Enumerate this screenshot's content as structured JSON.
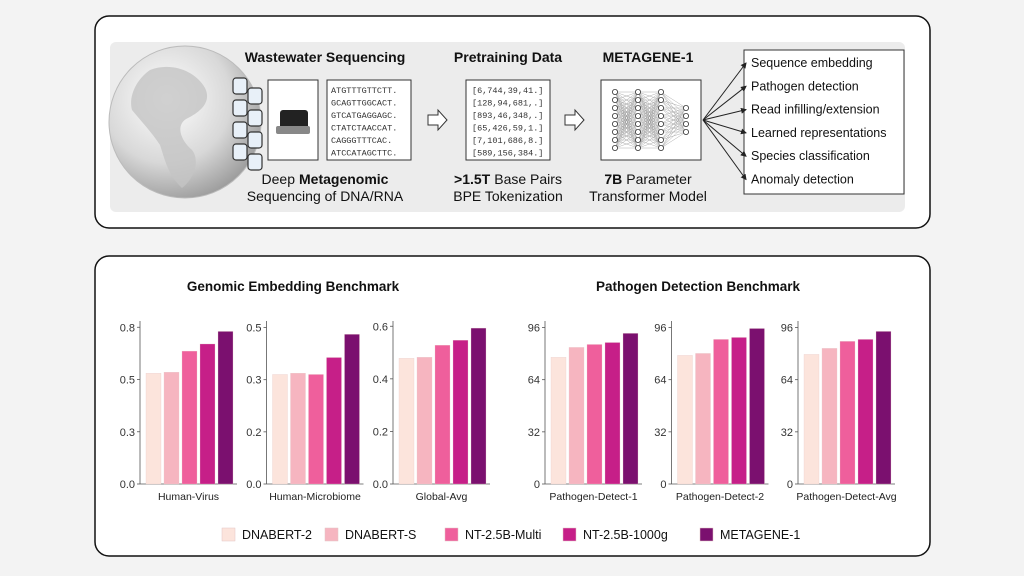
{
  "diagram": {
    "stage_titles": [
      "Wastewater Sequencing",
      "Pretraining Data",
      "METAGENE-1"
    ],
    "sequences": [
      "ATGTTTGTTCTT.",
      "GCAGTTGGCACT.",
      "GTCATGAGGAGC.",
      "CTATCTAACCAT.",
      "CAGGGTTTCAC.",
      "ATCCATAGCTTC."
    ],
    "tokens": [
      "[6,744,39,41.]",
      "[128,94,681,.]",
      "[893,46,348,.]",
      "[65,426,59,1.]",
      "[7,101,686,8.]",
      "[589,156,384.]"
    ],
    "captions": [
      {
        "lead": "Deep",
        "strong": "Metagenomic",
        "line2": "Sequencing of DNA/RNA"
      },
      {
        "strong": ">1.5T",
        "rest": "Base Pairs",
        "line2": "BPE Tokenization"
      },
      {
        "strong": "7B",
        "rest": "Parameter",
        "line2": "Transformer Model"
      }
    ],
    "outputs": [
      "Sequence embedding",
      "Pathogen detection",
      "Read infilling/extension",
      "Learned representations",
      "Species classification",
      "Anomaly detection"
    ]
  },
  "chart_data": {
    "type": "bar",
    "series": [
      {
        "name": "DNABERT-2",
        "color": "#fce4dc"
      },
      {
        "name": "DNABERT-S",
        "color": "#f6b5c0"
      },
      {
        "name": "NT-2.5B-Multi",
        "color": "#ef5f9c"
      },
      {
        "name": "NT-2.5B-1000g",
        "color": "#c61f88"
      },
      {
        "name": "METAGENE-1",
        "color": "#7b106f"
      }
    ],
    "groups": [
      {
        "title": "Genomic Embedding Benchmark",
        "panels": [
          {
            "label": "Human-Virus",
            "values": [
              0.53,
              0.535,
              0.636,
              0.67,
              0.73
            ],
            "ylim": [
              0,
              0.78
            ],
            "yticks": [
              {
                "value": 0,
                "label": "0.0"
              },
              {
                "value": 0.25,
                "label": "0.3"
              },
              {
                "value": 0.5,
                "label": "0.5"
              },
              {
                "value": 0.75,
                "label": "0.8"
              }
            ]
          },
          {
            "label": "Human-Microbiome",
            "values": [
              0.336,
              0.34,
              0.336,
              0.388,
              0.459
            ],
            "ylim": [
              0,
              0.5
            ],
            "yticks": [
              {
                "value": 0,
                "label": "0.0"
              },
              {
                "value": 0.16,
                "label": "0.2"
              },
              {
                "value": 0.32,
                "label": "0.3"
              },
              {
                "value": 0.48,
                "label": "0.5"
              }
            ]
          },
          {
            "label": "Global-Avg",
            "values": [
              0.478,
              0.482,
              0.528,
              0.547,
              0.593
            ],
            "ylim": [
              0,
              0.62
            ],
            "yticks": [
              {
                "value": 0,
                "label": "0.0"
              },
              0.2,
              0.4,
              0.6
            ]
          }
        ]
      },
      {
        "title": "Pathogen Detection Benchmark",
        "panels": [
          {
            "label": "Pathogen-Detect-1",
            "values": [
              77.7,
              83.8,
              85.6,
              86.8,
              92.4
            ],
            "ylim": [
              0,
              100
            ],
            "yticks": [
              0,
              32,
              64,
              96
            ]
          },
          {
            "label": "Pathogen-Detect-2",
            "values": [
              78.9,
              80.1,
              88.7,
              89.9,
              95.4
            ],
            "ylim": [
              0,
              100
            ],
            "yticks": [
              0,
              32,
              64,
              96
            ]
          },
          {
            "label": "Pathogen-Detect-Avg",
            "values": [
              79.5,
              83.2,
              87.5,
              88.7,
              93.6
            ],
            "ylim": [
              0,
              100
            ],
            "yticks": [
              0,
              32,
              64,
              96
            ]
          }
        ]
      }
    ]
  }
}
